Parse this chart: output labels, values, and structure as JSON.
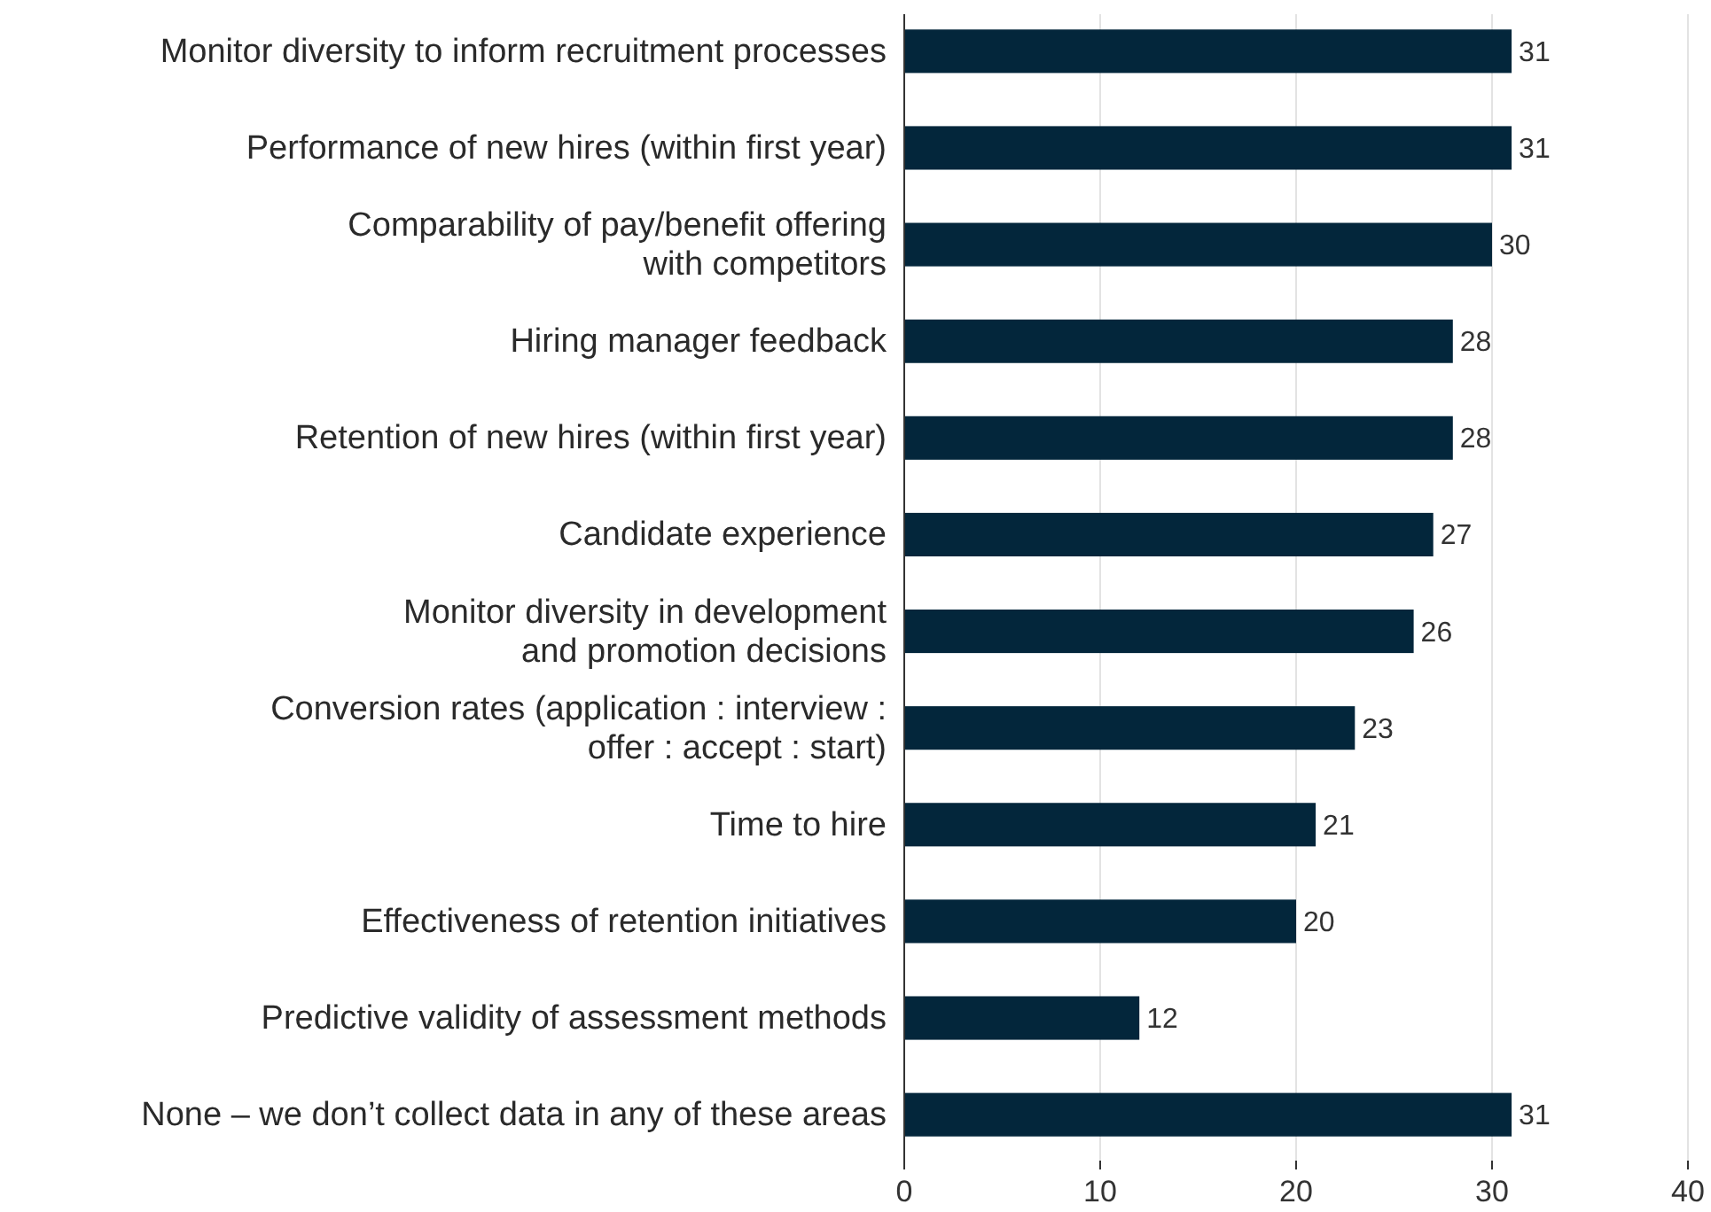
{
  "chart_data": {
    "type": "bar",
    "orientation": "horizontal",
    "categories": [
      "Monitor diversity to inform recruitment processes",
      "Performance of new hires (within first year)",
      "Comparability of pay/benefit offering\nwith competitors",
      "Hiring manager feedback",
      "Retention of new hires (within first year)",
      "Candidate experience",
      "Monitor diversity in development\nand promotion decisions",
      "Conversion rates (application : interview :\noffer : accept : start)",
      "Time to hire",
      "Effectiveness of retention initiatives",
      "Predictive validity of assessment methods",
      "None – we don’t collect data in any of these areas"
    ],
    "values": [
      31,
      31,
      30,
      28,
      28,
      27,
      26,
      23,
      21,
      20,
      12,
      31
    ],
    "color": "#03263b",
    "xlim": [
      0,
      40
    ],
    "xticks": [
      0,
      10,
      20,
      30,
      40
    ],
    "grid": "x",
    "data_labels": true
  }
}
